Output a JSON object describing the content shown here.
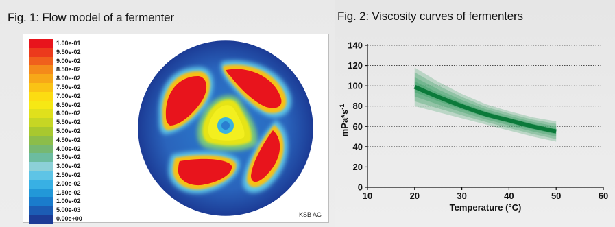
{
  "figures": {
    "fig1": {
      "title": "Fig. 1: Flow model of a fermenter",
      "credit": "KSB AG",
      "legend": [
        {
          "label": "1.00e-01",
          "color": "#e8141c"
        },
        {
          "label": "9.50e-02",
          "color": "#ec3a1c"
        },
        {
          "label": "9.00e-02",
          "color": "#f0601c"
        },
        {
          "label": "8.50e-02",
          "color": "#f48a1a"
        },
        {
          "label": "8.00e-02",
          "color": "#f7a818"
        },
        {
          "label": "7.50e-02",
          "color": "#fac315"
        },
        {
          "label": "7.00e-02",
          "color": "#fcdc12"
        },
        {
          "label": "6.50e-02",
          "color": "#f6e814"
        },
        {
          "label": "6.00e-02",
          "color": "#e0e01c"
        },
        {
          "label": "5.50e-02",
          "color": "#c6d624"
        },
        {
          "label": "5.00e-02",
          "color": "#a8c82e"
        },
        {
          "label": "4.50e-02",
          "color": "#8cbd4a"
        },
        {
          "label": "4.00e-02",
          "color": "#76b872"
        },
        {
          "label": "3.50e-02",
          "color": "#6cbca0"
        },
        {
          "label": "3.00e-02",
          "color": "#8cd0d8"
        },
        {
          "label": "2.50e-02",
          "color": "#5ec4e6"
        },
        {
          "label": "2.00e-02",
          "color": "#38b0e4"
        },
        {
          "label": "1.50e-02",
          "color": "#2298d8"
        },
        {
          "label": "1.00e-02",
          "color": "#1a7ccc"
        },
        {
          "label": "5.00e-03",
          "color": "#1c5cb4"
        },
        {
          "label": "0.00e+00",
          "color": "#1c3c96"
        }
      ]
    },
    "fig2": {
      "title": "Fig. 2: Viscosity curves of fermenters"
    }
  },
  "chart_data": {
    "type": "line",
    "xlabel": "Temperature (°C)",
    "ylabel": "mPa*s-1",
    "xlim": [
      10,
      60
    ],
    "ylim": [
      0,
      140
    ],
    "xticks": [
      10,
      20,
      30,
      40,
      50,
      60
    ],
    "yticks": [
      0,
      20,
      40,
      60,
      80,
      100,
      120,
      140
    ],
    "grid": "horizontal dotted",
    "series": [
      {
        "x": [
          20,
          25,
          30,
          35,
          40,
          45,
          50
        ],
        "y": [
          99,
          89,
          80,
          72,
          66,
          60,
          55
        ],
        "upper": [
          118,
          104,
          92,
          82,
          75,
          69,
          65
        ],
        "lower": [
          80,
          74,
          68,
          62,
          56,
          50,
          45
        ],
        "color": "#0b7a3a"
      }
    ]
  }
}
